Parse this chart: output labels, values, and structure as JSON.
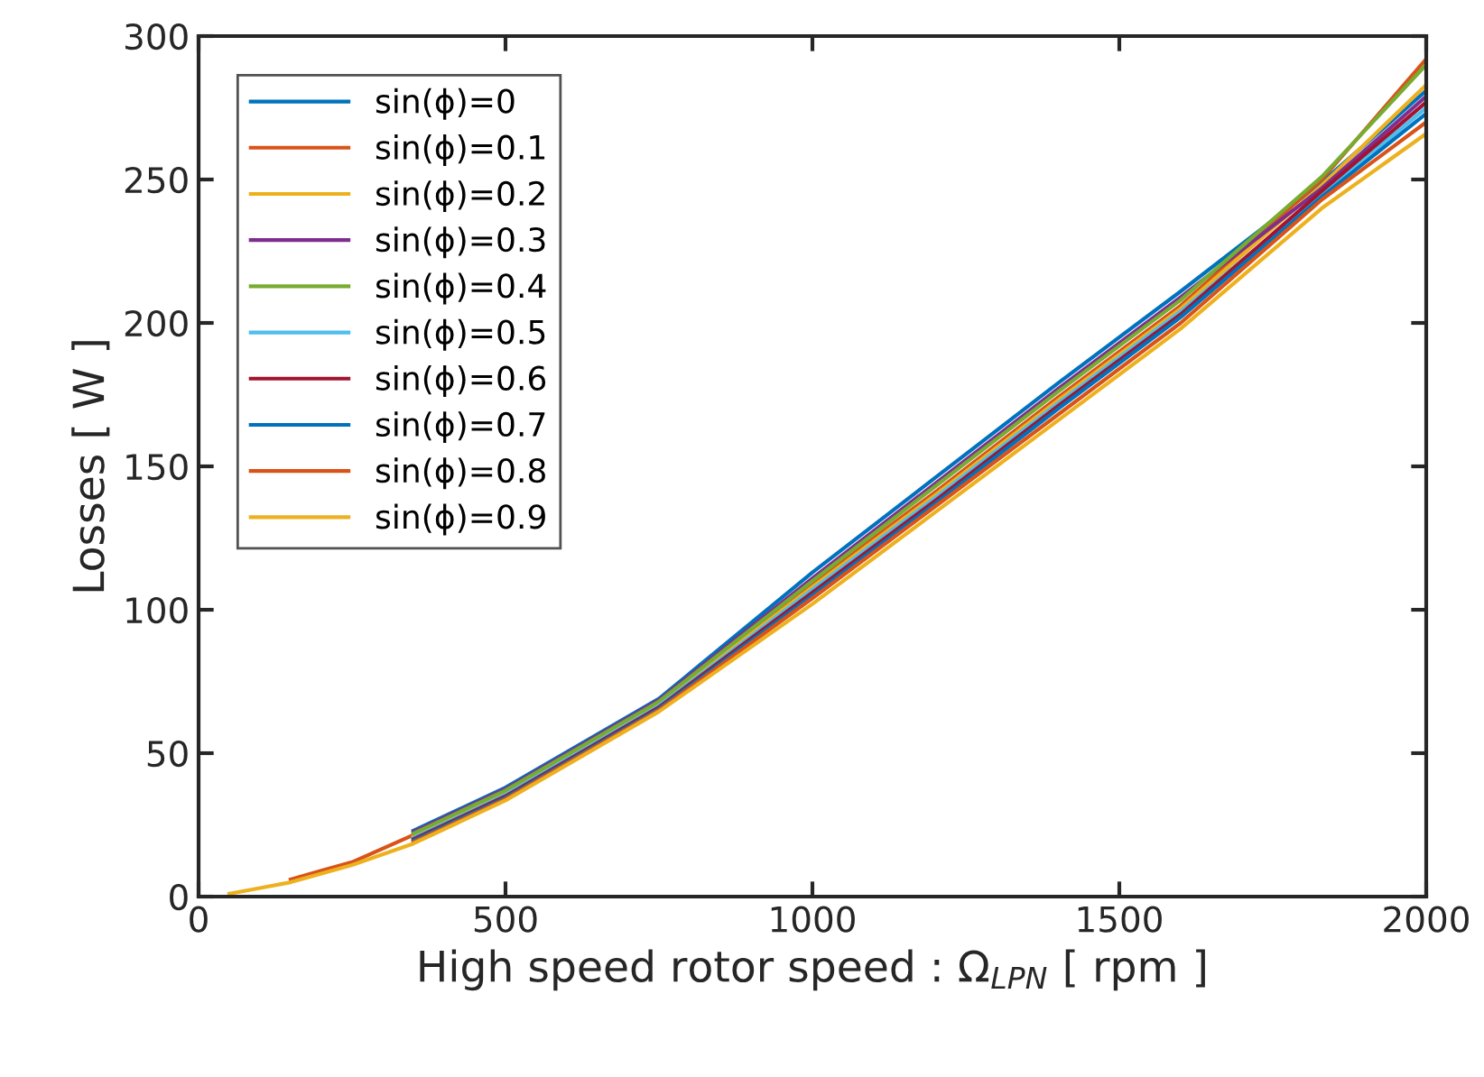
{
  "chart_data": {
    "type": "line",
    "xlabel": "High speed rotor speed : Ω$_{LPN}$ [ rpm ]",
    "ylabel": "Losses [ W ]",
    "x": [
      50,
      100,
      150,
      200,
      250,
      350,
      500,
      750,
      1000,
      1200,
      1400,
      1600,
      1830,
      2000
    ],
    "xlim": [
      0,
      2000
    ],
    "xticks": [
      0,
      500,
      1000,
      1500,
      2000
    ],
    "ylim": [
      0,
      300
    ],
    "yticks": [
      0,
      50,
      100,
      150,
      200,
      250,
      300
    ],
    "grid": false,
    "legend": "top left",
    "line_style": "solid",
    "marker": "none",
    "series": [
      {
        "name": "sin(ϕ)=0",
        "color": "#0072bd",
        "values": [
          null,
          null,
          null,
          null,
          null,
          23,
          38,
          69,
          113,
          146,
          179,
          211,
          249,
          281
        ]
      },
      {
        "name": "sin(ϕ)=0.1",
        "color": "#d95319",
        "values": [
          null,
          null,
          6,
          9,
          12,
          21.5,
          36.5,
          67.5,
          109,
          141,
          174,
          206,
          250,
          292
        ]
      },
      {
        "name": "sin(ϕ)=0.2",
        "color": "#edb120",
        "values": [
          null,
          null,
          null,
          null,
          null,
          21,
          36,
          67,
          108,
          140,
          173,
          205,
          248,
          283
        ]
      },
      {
        "name": "sin(ϕ)=0.3",
        "color": "#7e2f8e",
        "values": [
          null,
          null,
          null,
          null,
          null,
          22.5,
          37.5,
          68.5,
          111,
          144,
          177,
          209,
          247,
          279
        ]
      },
      {
        "name": "sin(ϕ)=0.4",
        "color": "#77ac30",
        "values": [
          null,
          null,
          null,
          null,
          null,
          22,
          37,
          68,
          110,
          143,
          176,
          208,
          251,
          290
        ]
      },
      {
        "name": "sin(ϕ)=0.5",
        "color": "#4dbeee",
        "values": [
          null,
          null,
          null,
          null,
          null,
          20.5,
          35.5,
          66.5,
          107,
          139,
          172,
          204,
          245,
          275
        ]
      },
      {
        "name": "sin(ϕ)=0.6",
        "color": "#a2142f",
        "values": [
          null,
          null,
          null,
          null,
          null,
          20,
          35,
          66,
          106,
          138,
          171,
          203,
          246,
          277
        ]
      },
      {
        "name": "sin(ϕ)=0.7",
        "color": "#0072bd",
        "values": [
          null,
          null,
          null,
          null,
          null,
          19.5,
          34.5,
          65.5,
          105,
          137,
          170,
          202,
          244,
          273
        ]
      },
      {
        "name": "sin(ϕ)=0.8",
        "color": "#d95319",
        "values": [
          null,
          null,
          null,
          null,
          null,
          19,
          34,
          65,
          104,
          136,
          168,
          200,
          243,
          270
        ]
      },
      {
        "name": "sin(ϕ)=0.9",
        "color": "#edb120",
        "values": [
          1,
          3,
          5,
          8,
          11,
          18.5,
          33.5,
          64.5,
          102,
          134,
          166,
          198,
          240,
          266
        ]
      }
    ]
  }
}
